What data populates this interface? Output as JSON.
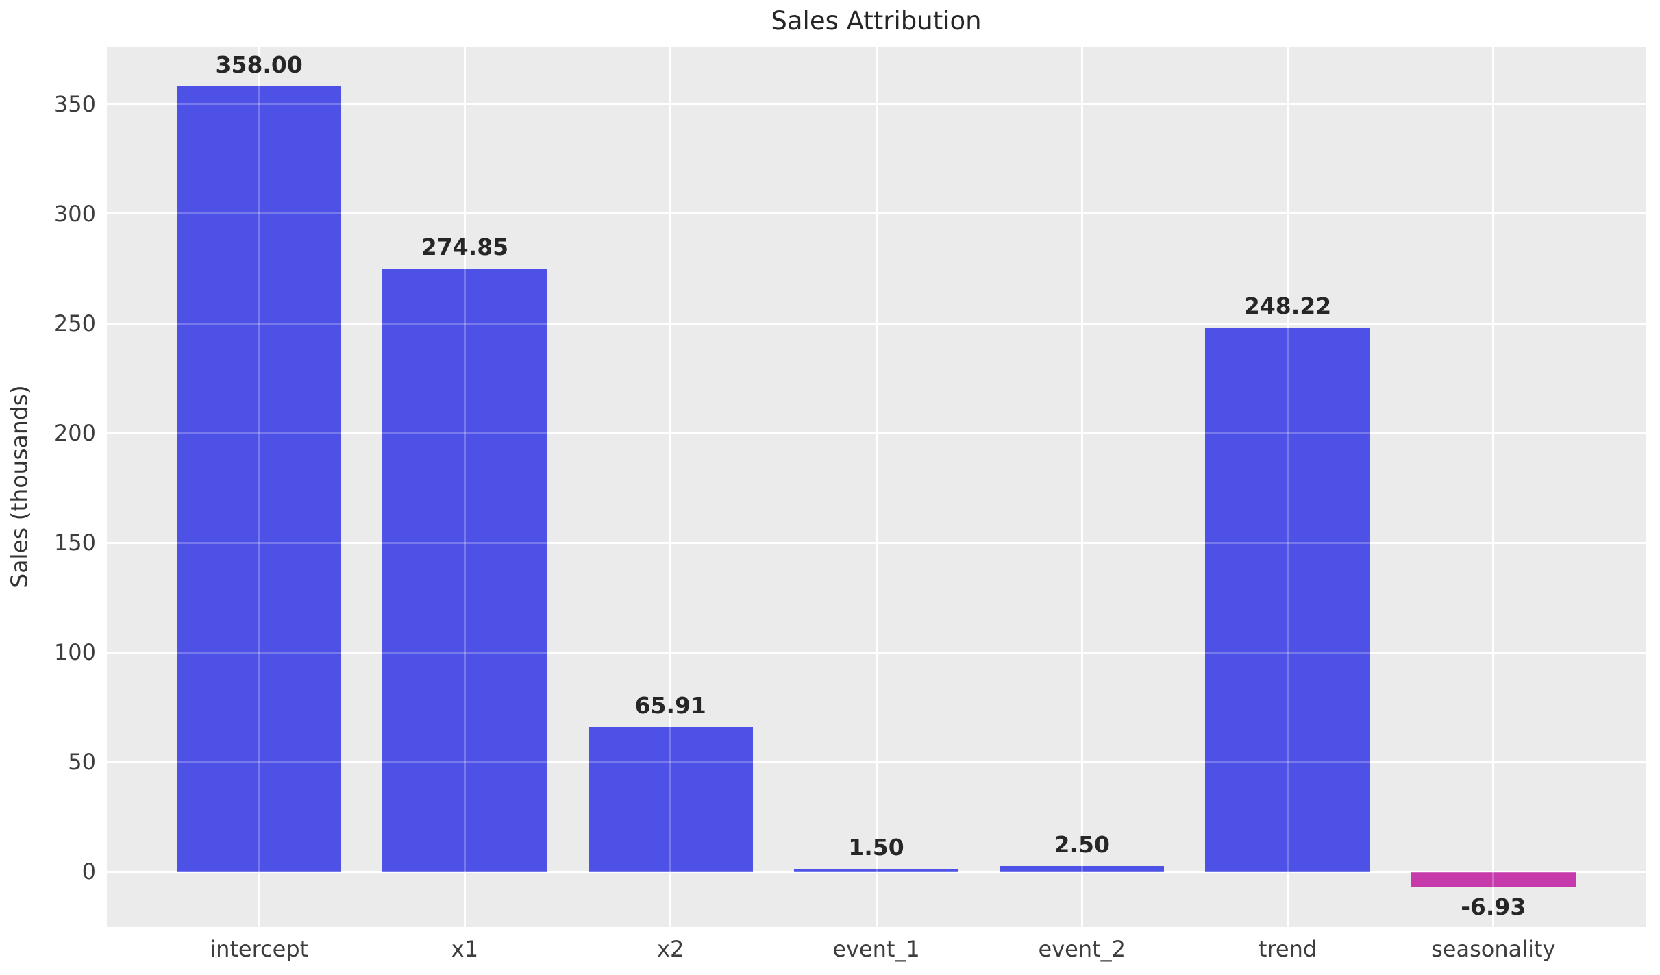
{
  "title": "Sales Attribution",
  "colors": {
    "bar_positive": "#4E51E5",
    "bar_negative": "#C73AAC",
    "plot_background": "#EBEBEB",
    "figure_background": "#FFFFFF",
    "gridline": "#FFFFFF",
    "title_text": "#262626",
    "tick_text": "#3D3D3D",
    "value_label_text": "#262626"
  },
  "chart_data": {
    "type": "bar",
    "title": "Sales Attribution",
    "xlabel": "",
    "ylabel": "Sales (thousands)",
    "categories": [
      "intercept",
      "x1",
      "x2",
      "event_1",
      "event_2",
      "trend",
      "seasonality"
    ],
    "values": [
      358.0,
      274.85,
      65.91,
      1.5,
      2.5,
      248.22,
      -6.93
    ],
    "value_labels": [
      "358.00",
      "274.85",
      "65.91",
      "1.50",
      "2.50",
      "248.22",
      "-6.93"
    ],
    "yticks": [
      0,
      50,
      100,
      150,
      200,
      250,
      300,
      350
    ],
    "ytick_labels": [
      "0",
      "50",
      "100",
      "150",
      "200",
      "250",
      "300",
      "350"
    ],
    "ylim": [
      -25.2,
      376.2
    ],
    "xlim": [
      -0.74,
      6.74
    ],
    "bar_width": 0.8,
    "grid": true,
    "grid_orientation": "both",
    "legend": false,
    "negative_color_rule": "negative values drawn in magenta, positive in blue"
  }
}
